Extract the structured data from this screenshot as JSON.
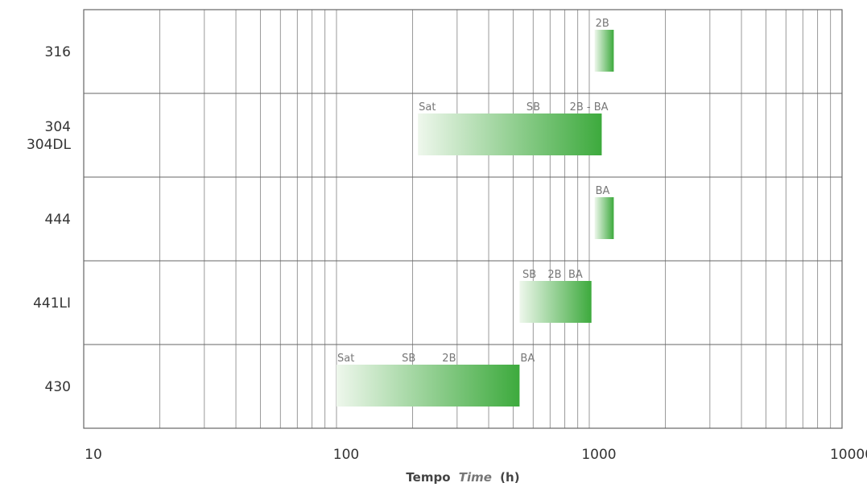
{
  "chart_data": {
    "type": "bar",
    "orientation": "horizontal",
    "x_scale": "log",
    "xlim": [
      10,
      10000
    ],
    "x_ticks": [
      "10",
      "100",
      "1000",
      "10000"
    ],
    "xlabel": {
      "bold": "Tempo",
      "italic": "Time",
      "unit": "(h)"
    },
    "grid": true,
    "colors": {
      "bar_start": "#eef7ec",
      "bar_end": "#3daa3d",
      "grid": "#9a9a9a",
      "frame": "#666666"
    },
    "categories": [
      {
        "label": [
          "316"
        ],
        "start": 1050,
        "end": 1250,
        "annotations": [
          {
            "text": "2B",
            "x": 1050
          }
        ]
      },
      {
        "label": [
          "304",
          "304DL"
        ],
        "start": 210,
        "end": 1120,
        "annotations": [
          {
            "text": "Sat",
            "x": 210
          },
          {
            "text": "SB",
            "x": 560
          },
          {
            "text": "2B - BA",
            "x": 830
          }
        ]
      },
      {
        "label": [
          "444"
        ],
        "start": 1050,
        "end": 1250,
        "annotations": [
          {
            "text": "BA",
            "x": 1050
          }
        ]
      },
      {
        "label": [
          "441LI"
        ],
        "start": 530,
        "end": 1020,
        "annotations": [
          {
            "text": "SB",
            "x": 540
          },
          {
            "text": "2B",
            "x": 680
          },
          {
            "text": "BA",
            "x": 820
          }
        ]
      },
      {
        "label": [
          "430"
        ],
        "start": 100,
        "end": 530,
        "annotations": [
          {
            "text": "Sat",
            "x": 100
          },
          {
            "text": "SB",
            "x": 180
          },
          {
            "text": "2B",
            "x": 260
          },
          {
            "text": "BA",
            "x": 530
          }
        ]
      }
    ]
  }
}
